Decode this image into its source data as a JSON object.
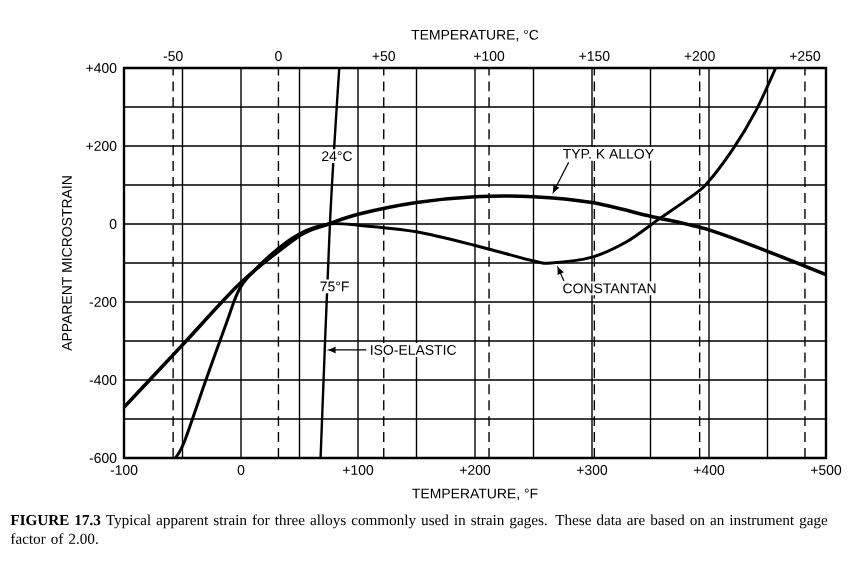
{
  "chart_data": {
    "type": "line",
    "xlabel": "TEMPERATURE, °F",
    "x2label": "TEMPERATURE, °C",
    "ylabel": "APPARENT MICROSTRAIN",
    "xlim": [
      -100,
      500
    ],
    "xticks": [
      -100,
      {
        "value": -50,
        "label": null
      },
      0,
      {
        "value": 50,
        "label": null
      },
      {
        "value": 100,
        "label": "+100"
      },
      {
        "value": 150,
        "label": null
      },
      {
        "value": 200,
        "label": "+200"
      },
      {
        "value": 250,
        "label": null
      },
      {
        "value": 300,
        "label": "+300"
      },
      {
        "value": 350,
        "label": null
      },
      {
        "value": 400,
        "label": "+400"
      },
      {
        "value": 450,
        "label": null
      },
      {
        "value": 500,
        "label": "+500"
      }
    ],
    "x2lim": [
      -73.33,
      260
    ],
    "x2ticks": [
      -50,
      0,
      {
        "value": 50,
        "label": "+50"
      },
      {
        "value": 100,
        "label": "+100"
      },
      {
        "value": 150,
        "label": "+150"
      },
      {
        "value": 200,
        "label": "+200"
      },
      {
        "value": 250,
        "label": "+250"
      }
    ],
    "ylim": [
      -600,
      400
    ],
    "yticks": [
      -600,
      {
        "value": -500,
        "label": null
      },
      -400,
      {
        "value": -300,
        "label": null
      },
      -200,
      {
        "value": -100,
        "label": null
      },
      0,
      {
        "value": 100,
        "label": null
      },
      {
        "value": 200,
        "label": "+200"
      },
      {
        "value": 300,
        "label": null
      },
      {
        "value": 400,
        "label": "+400"
      }
    ],
    "grid": true,
    "series": [
      {
        "name": "TYP. K ALLOY",
        "color": "#000000",
        "x": [
          -100,
          -50,
          0,
          50,
          75,
          100,
          150,
          200,
          250,
          300,
          350,
          400,
          450,
          500
        ],
        "values": [
          -470,
          -310,
          -150,
          -30,
          0,
          25,
          55,
          70,
          70,
          55,
          20,
          -15,
          -70,
          -130
        ]
      },
      {
        "name": "CONSTANTAN",
        "color": "#000000",
        "x": [
          -56,
          -48,
          -30,
          -12,
          0,
          25,
          50,
          75,
          100,
          150,
          200,
          250,
          265,
          300,
          330,
          356,
          380,
          397,
          420,
          440,
          457
        ],
        "values": [
          -600,
          -555,
          -400,
          -250,
          -160,
          -80,
          -25,
          0,
          -3,
          -20,
          -55,
          -95,
          -100,
          -85,
          -45,
          10,
          60,
          100,
          190,
          290,
          400
        ]
      },
      {
        "name": "ISO-ELASTIC",
        "color": "#000000",
        "x": [
          68,
          76,
          84
        ],
        "values": [
          -600,
          0,
          400
        ]
      }
    ],
    "annotations": [
      "24°C",
      "75°F",
      "**FIGURE 17.3** Typical apparent strain for three alloys commonly used in strain gages. These data are based on an instrument gage factor of 2.00."
    ]
  }
}
